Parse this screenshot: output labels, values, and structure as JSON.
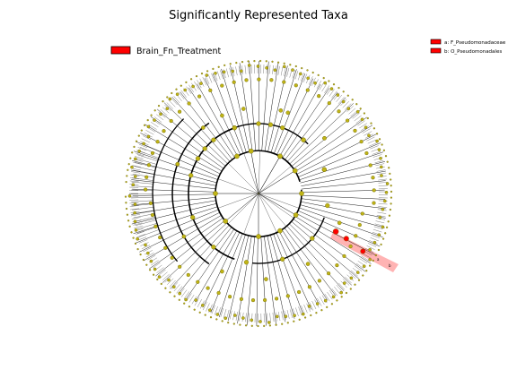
{
  "title": "Significantly Represented Taxa",
  "legend": {
    "class_label": "Brain_Fn_Treatment",
    "class_color": "#ff0000"
  },
  "clade_legend": [
    {
      "key": "a",
      "label": "a: F_Pseudomonadaceae",
      "color": "#ff0000"
    },
    {
      "key": "b",
      "label": "b: O_Pseudomonadales",
      "color": "#ff0000"
    }
  ],
  "colors": {
    "node_fill": "#c0b416",
    "node_edge": "#6b6400",
    "highlight_node": "#ff0000",
    "highlight_band": "#ff9a9a",
    "branch": "#000000"
  }
}
